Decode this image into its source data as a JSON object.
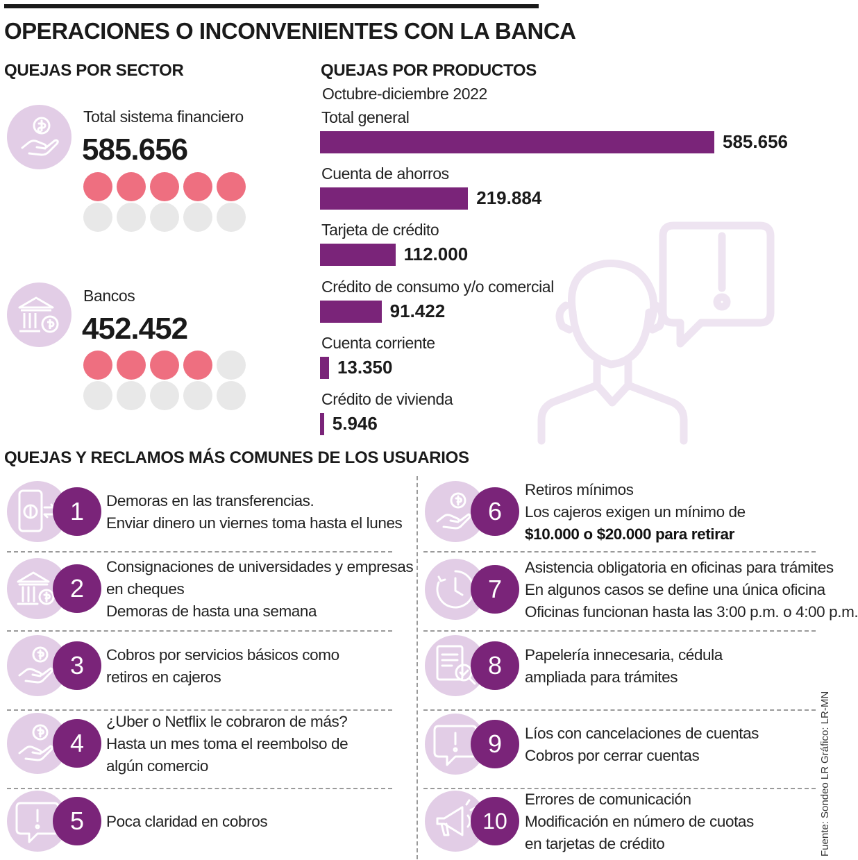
{
  "title": "OPERACIONES O INCONVENIENTES CON LA BANCA",
  "sector": {
    "title": "QUEJAS POR SECTOR",
    "items": [
      {
        "label": "Total sistema financiero",
        "value": "585.656",
        "filled": 5,
        "total": 10,
        "icon": "hand-coin-icon"
      },
      {
        "label": "Bancos",
        "value": "452.452",
        "filled": 4,
        "total": 10,
        "icon": "bank-icon"
      }
    ]
  },
  "colors": {
    "bar": "#7a2479",
    "dot_filled": "#ee6f80",
    "dot_empty": "#e8e8e8",
    "circle_bg": "#e2cde6",
    "badge": "#7a2479"
  },
  "chart_data": {
    "type": "bar",
    "title": "QUEJAS POR PRODUCTOS",
    "subtitle": "Octubre-diciembre 2022",
    "categories": [
      "Total general",
      "Cuenta de ahorros",
      "Tarjeta de crédito",
      "Crédito de consumo y/o comercial",
      "Cuenta corriente",
      "Crédito de vivienda"
    ],
    "values": [
      585656,
      219884,
      112000,
      91422,
      13350,
      5946
    ],
    "value_labels": [
      "585.656",
      "219.884",
      "112.000",
      "91.422",
      "13.350",
      "5.946"
    ],
    "orientation": "horizontal",
    "xlim": [
      0,
      585656
    ],
    "grid": false
  },
  "common": {
    "title": "QUEJAS Y RECLAMOS MÁS COMUNES DE LOS USUARIOS",
    "items": [
      {
        "num": "1",
        "icon": "phone-transfer-icon",
        "lines": [
          "Demoras en las transferencias.",
          "Enviar dinero un viernes toma hasta el lunes"
        ]
      },
      {
        "num": "2",
        "icon": "bank-icon",
        "lines": [
          "Consignaciones de universidades y empresas",
          "en cheques",
          "Demoras de hasta una semana"
        ]
      },
      {
        "num": "3",
        "icon": "hand-coin-icon",
        "lines": [
          "Cobros por servicios básicos como",
          "retiros en cajeros"
        ]
      },
      {
        "num": "4",
        "icon": "hand-coin-icon",
        "lines": [
          "¿Uber o Netflix le cobraron de más?",
          "Hasta un mes toma el reembolso de",
          "algún comercio"
        ]
      },
      {
        "num": "5",
        "icon": "alert-message-icon",
        "lines": [
          "Poca claridad en cobros"
        ]
      },
      {
        "num": "6",
        "icon": "hand-coin-icon",
        "lines": [
          "Retiros mínimos",
          "Los cajeros exigen un mínimo de"
        ],
        "bold_line": "$10.000 o $20.000 para retirar"
      },
      {
        "num": "7",
        "icon": "clock-icon",
        "lines": [
          "Asistencia obligatoria en oficinas para trámites",
          "En algunos casos se define una única oficina",
          "Oficinas funcionan hasta las 3:00 p.m. o 4:00 p.m."
        ]
      },
      {
        "num": "8",
        "icon": "document-check-icon",
        "lines": [
          "Papelería innecesaria, cédula",
          "ampliada para trámites"
        ]
      },
      {
        "num": "9",
        "icon": "alert-message-icon",
        "lines": [
          "Líos con cancelaciones de cuentas",
          "Cobros por cerrar cuentas"
        ]
      },
      {
        "num": "10",
        "icon": "megaphone-icon",
        "lines": [
          "Errores de comunicación",
          "Modificación en número de cuotas",
          "en tarjetas de crédito"
        ]
      }
    ]
  },
  "credits": {
    "graphic": "Gráfico: LR-MN",
    "source": "Fuente: Sondeo LR"
  }
}
